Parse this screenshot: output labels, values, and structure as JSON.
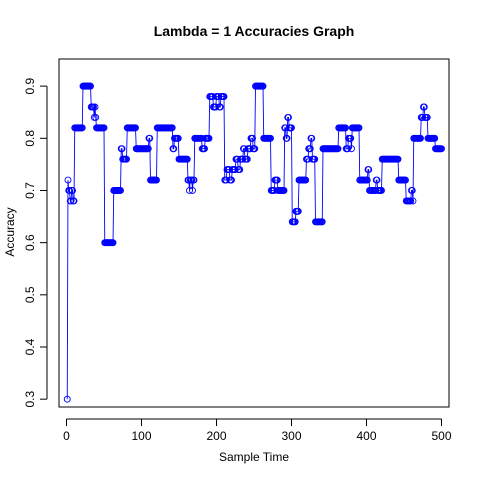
{
  "chart_data": {
    "type": "line",
    "title": "Lambda =  1  Accuracies Graph",
    "xlabel": "Sample Time",
    "ylabel": "Accuracy",
    "xlim": [
      -10,
      510
    ],
    "ylim": [
      0.285,
      0.952
    ],
    "x_ticks": [
      0,
      100,
      200,
      300,
      400,
      500
    ],
    "y_ticks": [
      0.3,
      0.4,
      0.5,
      0.6,
      0.7,
      0.8,
      0.9
    ],
    "grid": false,
    "legend": "none",
    "markers": "open-circle",
    "color": "#0000ff",
    "segments": [
      [
        1,
        0.3
      ],
      [
        2,
        0.72
      ],
      [
        3,
        0.7
      ],
      [
        5,
        0.68
      ],
      [
        7,
        0.7
      ],
      [
        9,
        0.68
      ],
      [
        11,
        0.82
      ],
      [
        20,
        0.82
      ],
      [
        22,
        0.9
      ],
      [
        32,
        0.9
      ],
      [
        33,
        0.86
      ],
      [
        36,
        0.86
      ],
      [
        37,
        0.84
      ],
      [
        38,
        0.86
      ],
      [
        39,
        0.84
      ],
      [
        40,
        0.82
      ],
      [
        50,
        0.82
      ],
      [
        51,
        0.6
      ],
      [
        62,
        0.6
      ],
      [
        63,
        0.7
      ],
      [
        72,
        0.7
      ],
      [
        73,
        0.78
      ],
      [
        75,
        0.76
      ],
      [
        80,
        0.76
      ],
      [
        81,
        0.82
      ],
      [
        92,
        0.82
      ],
      [
        93,
        0.78
      ],
      [
        108,
        0.78
      ],
      [
        110,
        0.8
      ],
      [
        112,
        0.72
      ],
      [
        120,
        0.72
      ],
      [
        121,
        0.82
      ],
      [
        141,
        0.82
      ],
      [
        142,
        0.78
      ],
      [
        144,
        0.8
      ],
      [
        149,
        0.8
      ],
      [
        150,
        0.76
      ],
      [
        161,
        0.76
      ],
      [
        162,
        0.72
      ],
      [
        164,
        0.7
      ],
      [
        165,
        0.72
      ],
      [
        168,
        0.7
      ],
      [
        169,
        0.72
      ],
      [
        171,
        0.8
      ],
      [
        180,
        0.8
      ],
      [
        181,
        0.78
      ],
      [
        184,
        0.78
      ],
      [
        185,
        0.8
      ],
      [
        190,
        0.8
      ],
      [
        191,
        0.88
      ],
      [
        196,
        0.86
      ],
      [
        200,
        0.88
      ],
      [
        204,
        0.86
      ],
      [
        206,
        0.88
      ],
      [
        210,
        0.88
      ],
      [
        211,
        0.72
      ],
      [
        214,
        0.74
      ],
      [
        218,
        0.72
      ],
      [
        221,
        0.74
      ],
      [
        226,
        0.76
      ],
      [
        229,
        0.74
      ],
      [
        232,
        0.76
      ],
      [
        236,
        0.78
      ],
      [
        238,
        0.76
      ],
      [
        242,
        0.78
      ],
      [
        246,
        0.8
      ],
      [
        249,
        0.78
      ],
      [
        252,
        0.9
      ],
      [
        262,
        0.9
      ],
      [
        263,
        0.8
      ],
      [
        272,
        0.8
      ],
      [
        273,
        0.7
      ],
      [
        278,
        0.72
      ],
      [
        282,
        0.7
      ],
      [
        290,
        0.7
      ],
      [
        291,
        0.82
      ],
      [
        293,
        0.8
      ],
      [
        295,
        0.84
      ],
      [
        297,
        0.82
      ],
      [
        300,
        0.82
      ],
      [
        301,
        0.64
      ],
      [
        305,
        0.64
      ],
      [
        306,
        0.66
      ],
      [
        309,
        0.66
      ],
      [
        310,
        0.72
      ],
      [
        319,
        0.72
      ],
      [
        320,
        0.76
      ],
      [
        323,
        0.78
      ],
      [
        326,
        0.8
      ],
      [
        328,
        0.76
      ],
      [
        331,
        0.76
      ],
      [
        332,
        0.64
      ],
      [
        341,
        0.64
      ],
      [
        342,
        0.78
      ],
      [
        362,
        0.78
      ],
      [
        363,
        0.82
      ],
      [
        372,
        0.82
      ],
      [
        373,
        0.78
      ],
      [
        376,
        0.8
      ],
      [
        378,
        0.8
      ],
      [
        380,
        0.78
      ],
      [
        381,
        0.82
      ],
      [
        390,
        0.82
      ],
      [
        391,
        0.72
      ],
      [
        400,
        0.72
      ],
      [
        402,
        0.74
      ],
      [
        404,
        0.7
      ],
      [
        411,
        0.7
      ],
      [
        413,
        0.72
      ],
      [
        415,
        0.7
      ],
      [
        420,
        0.7
      ],
      [
        421,
        0.76
      ],
      [
        442,
        0.76
      ],
      [
        443,
        0.72
      ],
      [
        452,
        0.72
      ],
      [
        453,
        0.68
      ],
      [
        458,
        0.68
      ],
      [
        460,
        0.7
      ],
      [
        462,
        0.68
      ],
      [
        463,
        0.8
      ],
      [
        472,
        0.8
      ],
      [
        473,
        0.84
      ],
      [
        476,
        0.86
      ],
      [
        478,
        0.84
      ],
      [
        481,
        0.84
      ],
      [
        482,
        0.8
      ],
      [
        491,
        0.8
      ],
      [
        492,
        0.78
      ],
      [
        500,
        0.78
      ]
    ]
  }
}
